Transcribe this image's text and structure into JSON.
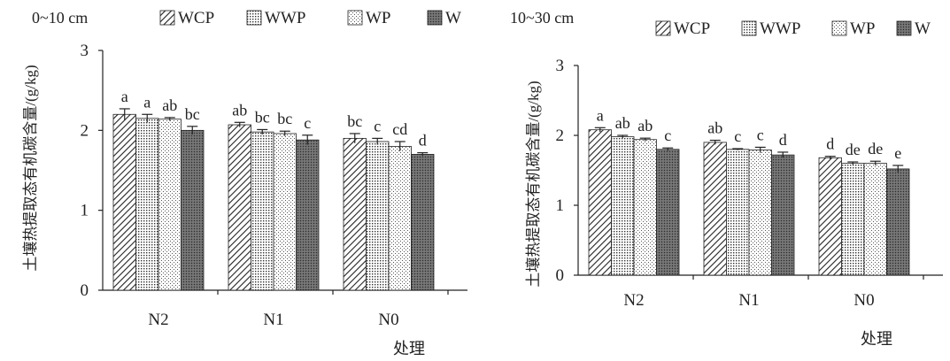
{
  "chart_data": [
    {
      "type": "bar",
      "title": "0~10 cm",
      "xlabel": "处理",
      "ylabel": "土壤热提取态有机碳含量/(g/kg)",
      "ylim": [
        0,
        3
      ],
      "yticks": [
        "0",
        "1",
        "2",
        "3"
      ],
      "categories": [
        "N2",
        "N1",
        "N0"
      ],
      "series": [
        {
          "name": "WCP",
          "values": [
            2.2,
            2.07,
            1.9
          ],
          "errors": [
            0.07,
            0.03,
            0.06
          ],
          "letters": [
            "a",
            "ab",
            "bc"
          ]
        },
        {
          "name": "WWP",
          "values": [
            2.15,
            1.98,
            1.86
          ],
          "errors": [
            0.05,
            0.03,
            0.04
          ],
          "letters": [
            "a",
            "bc",
            "c"
          ]
        },
        {
          "name": "WP",
          "values": [
            2.14,
            1.96,
            1.8
          ],
          "errors": [
            0.02,
            0.03,
            0.06
          ],
          "letters": [
            "ab",
            "bc",
            "cd"
          ]
        },
        {
          "name": "W",
          "values": [
            2.0,
            1.88,
            1.7
          ],
          "errors": [
            0.05,
            0.06,
            0.02
          ],
          "letters": [
            "bc",
            "c",
            "d"
          ]
        }
      ],
      "legend": "top"
    },
    {
      "type": "bar",
      "title": "10~30 cm",
      "xlabel": "处理",
      "ylabel": "土壤热提取态有机碳含量/(g/kg)",
      "ylim": [
        0,
        3
      ],
      "yticks": [
        "0",
        "1",
        "2",
        "3"
      ],
      "categories": [
        "N2",
        "N1",
        "N0"
      ],
      "series": [
        {
          "name": "WCP",
          "values": [
            2.08,
            1.9,
            1.68
          ],
          "errors": [
            0.03,
            0.03,
            0.02
          ],
          "letters": [
            "a",
            "ab",
            "d"
          ]
        },
        {
          "name": "WWP",
          "values": [
            1.98,
            1.8,
            1.6
          ],
          "errors": [
            0.02,
            0.01,
            0.02
          ],
          "letters": [
            "ab",
            "c",
            "de"
          ]
        },
        {
          "name": "WP",
          "values": [
            1.94,
            1.79,
            1.6
          ],
          "errors": [
            0.02,
            0.04,
            0.03
          ],
          "letters": [
            "ab",
            "c",
            "de"
          ]
        },
        {
          "name": "W",
          "values": [
            1.8,
            1.72,
            1.52
          ],
          "errors": [
            0.02,
            0.04,
            0.05
          ],
          "letters": [
            "c",
            "d",
            "e"
          ]
        }
      ],
      "legend": "top"
    }
  ]
}
